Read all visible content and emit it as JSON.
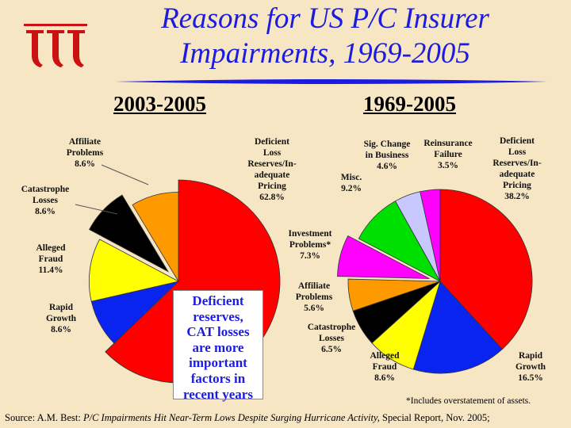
{
  "title_line1": "Reasons for US P/C Insurer",
  "title_line2": "Impairments, 1969-2005",
  "callout": [
    "Deficient",
    "reserves,",
    "CAT losses",
    "are more",
    "important",
    "factors in",
    "recent years"
  ],
  "footnote": "*Includes overstatement of assets.",
  "source": {
    "prefix": "Source: A.M. Best: ",
    "italic": "P/C Impairments Hit Near-Term Lows Despite Surging Hurricane Activity,",
    "suffix": " Special Report, Nov. 2005;"
  },
  "colors": {
    "title": "#1c1ce0",
    "background": "#f6e6c4",
    "logo": "#cc1111",
    "rule": "#1c1ce0"
  },
  "chart_data": [
    {
      "type": "pie",
      "title": "2003-2005",
      "series": [
        {
          "label": [
            "Deficient",
            "Loss",
            "Reserves/In-",
            "adequate",
            "Pricing",
            "62.8%"
          ],
          "value": 62.8,
          "color": "#ff0000"
        },
        {
          "label": [
            "Rapid",
            "Growth",
            "8.6%"
          ],
          "value": 8.6,
          "color": "#0a24f0"
        },
        {
          "label": [
            "Alleged",
            "Fraud",
            "11.4%"
          ],
          "value": 11.4,
          "color": "#ffff00"
        },
        {
          "label": [
            "Catastrophe",
            "Losses",
            "8.6%"
          ],
          "value": 8.6,
          "color": "#000000",
          "exploded": true
        },
        {
          "label": [
            "Affiliate",
            "Problems",
            "8.6%"
          ],
          "value": 8.6,
          "color": "#ff9900"
        }
      ]
    },
    {
      "type": "pie",
      "title": "1969-2005",
      "series": [
        {
          "label": [
            "Deficient",
            "Loss",
            "Reserves/In-",
            "adequate",
            "Pricing",
            "38.2%"
          ],
          "value": 38.2,
          "color": "#ff0000"
        },
        {
          "label": [
            "Rapid",
            "Growth",
            "16.5%"
          ],
          "value": 16.5,
          "color": "#0a24f0"
        },
        {
          "label": [
            "Alleged",
            "Fraud",
            "8.6%"
          ],
          "value": 8.6,
          "color": "#ffff00"
        },
        {
          "label": [
            "Catastrophe",
            "Losses",
            "6.5%"
          ],
          "value": 6.5,
          "color": "#000000"
        },
        {
          "label": [
            "Affiliate",
            "Problems",
            "5.6%"
          ],
          "value": 5.6,
          "color": "#ff9900"
        },
        {
          "label": [
            "Investment",
            "Problems*",
            "7.3%"
          ],
          "value": 7.3,
          "color": "#ff00ff",
          "exploded": true
        },
        {
          "label": [
            "Misc.",
            "9.2%"
          ],
          "value": 9.2,
          "color": "#00e000"
        },
        {
          "label": [
            "Sig. Change",
            "in Business",
            "4.6%"
          ],
          "value": 4.6,
          "color": "#c8c8ff"
        },
        {
          "label": [
            "Reinsurance",
            "Failure",
            "3.5%"
          ],
          "value": 3.5,
          "color": "#ff00ff"
        }
      ]
    }
  ]
}
